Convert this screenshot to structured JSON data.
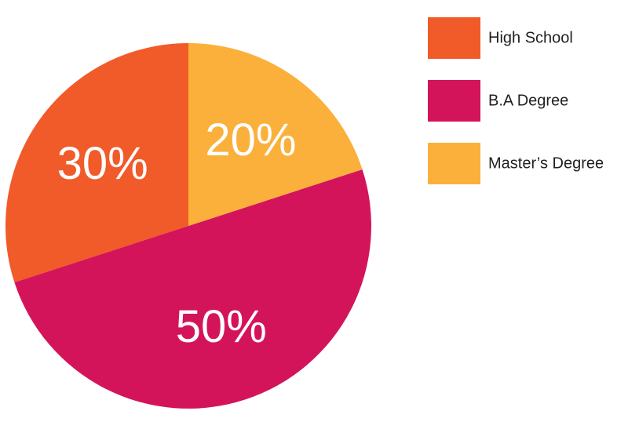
{
  "chart_data": {
    "type": "pie",
    "categories": [
      "High School",
      "B.A Degree",
      "Master’s Degree"
    ],
    "values": [
      30,
      50,
      20
    ],
    "value_labels": [
      "30%",
      "50%",
      "20%"
    ],
    "colors": [
      "#f15a29",
      "#d4145a",
      "#fbb03b"
    ],
    "startangle": 90,
    "counterclock": true,
    "legend": "upper right"
  }
}
